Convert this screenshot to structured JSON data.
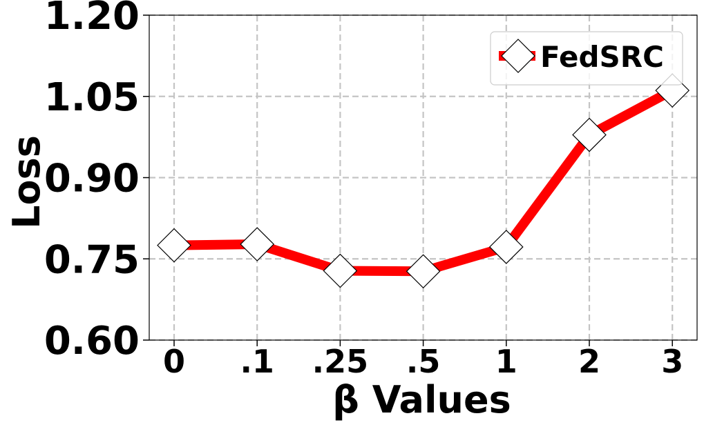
{
  "chart_data": {
    "type": "line",
    "xlabel": "β Values",
    "ylabel": "Loss",
    "categories": [
      "0",
      ".1",
      ".25",
      ".5",
      "1",
      "2",
      "3"
    ],
    "ylim": [
      0.6,
      1.2
    ],
    "yticks": [
      "0.60",
      "0.75",
      "0.90",
      "1.05",
      "1.20"
    ],
    "grid": true,
    "legend_position": "top-right",
    "series": [
      {
        "name": "FedSRC",
        "values": [
          0.775,
          0.777,
          0.728,
          0.727,
          0.772,
          0.979,
          1.061
        ],
        "line_color": "#ff0000",
        "marker": "diamond",
        "marker_fill": "#ffffff",
        "marker_edge": "#000000"
      }
    ]
  }
}
